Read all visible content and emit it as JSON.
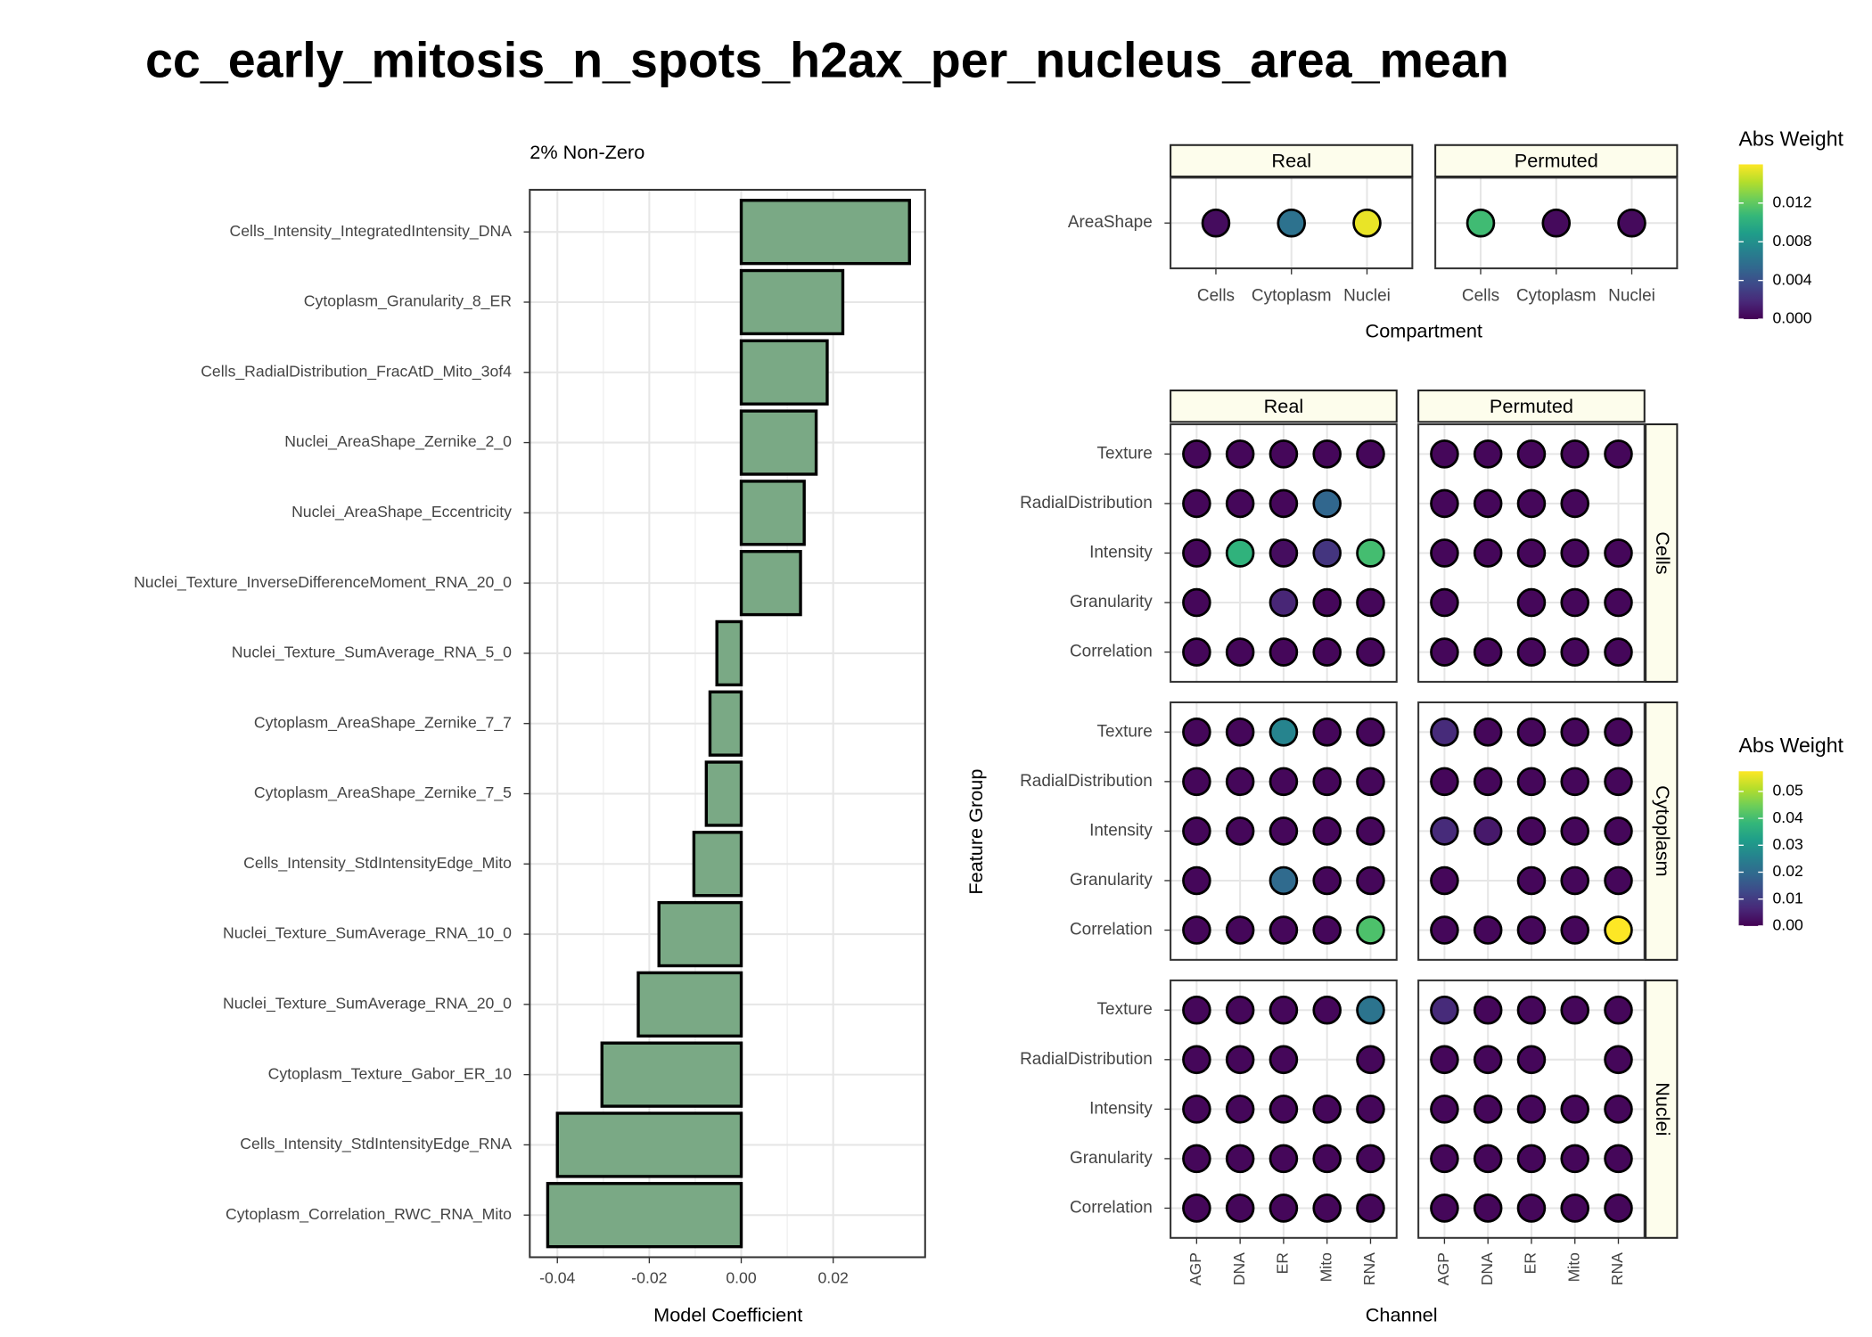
{
  "chart_data": [
    {
      "type": "bar",
      "title": "cc_early_mitosis_n_spots_h2ax_per_nucleus_area_mean",
      "subtitle": "2% Non-Zero",
      "x_label": "Model Coefficient",
      "color": "#7aa985",
      "grid": true,
      "categories": [
        "Cells_Intensity_IntegratedIntensity_DNA",
        "Cytoplasm_Granularity_8_ER",
        "Cells_RadialDistribution_FracAtD_Mito_3of4",
        "Nuclei_AreaShape_Zernike_2_0",
        "Nuclei_AreaShape_Eccentricity",
        "Nuclei_Texture_InverseDifferenceMoment_RNA_20_0",
        "Nuclei_Texture_SumAverage_RNA_5_0",
        "Cytoplasm_AreaShape_Zernike_7_7",
        "Cytoplasm_AreaShape_Zernike_7_5",
        "Cells_Intensity_StdIntensityEdge_Mito",
        "Nuclei_Texture_SumAverage_RNA_10_0",
        "Nuclei_Texture_SumAverage_RNA_20_0",
        "Cytoplasm_Texture_Gabor_ER_10",
        "Cells_Intensity_StdIntensityEdge_RNA",
        "Cytoplasm_Correlation_RWC_RNA_Mito"
      ],
      "values": [
        0.0366,
        0.0221,
        0.0187,
        0.0163,
        0.0137,
        0.0129,
        -0.0053,
        -0.0068,
        -0.0076,
        -0.0103,
        -0.0179,
        -0.0224,
        -0.0303,
        -0.04,
        -0.0421
      ],
      "xlim": [
        -0.046,
        0.04
      ],
      "xticks": [
        -0.04,
        -0.02,
        {
          "value": 0,
          "label": "0.00"
        },
        0.02
      ]
    },
    {
      "type": "dot_grid",
      "x_label": "Compartment",
      "legend_title": "Abs Weight",
      "col_facets": [
        "Real",
        "Permuted"
      ],
      "rows": [
        "AreaShape"
      ],
      "categories": [
        "Cells",
        "Cytoplasm",
        "Nuclei"
      ],
      "panels": [
        {
          "values": [
            [
              0.0005,
              0.006,
              0.0155
            ]
          ]
        },
        {
          "values": [
            [
              0.011,
              0.0004,
              0.0004
            ]
          ]
        }
      ],
      "clim": [
        0,
        0.016
      ],
      "cticks": [
        {
          "value": 0,
          "label": "0.000"
        },
        0.004,
        0.008,
        0.012
      ]
    },
    {
      "type": "dot_grid",
      "x_label": "Channel",
      "y_label": "Feature Group",
      "legend_title": "Abs Weight",
      "col_facets": [
        "Real",
        "Permuted"
      ],
      "row_facets": [
        "Cells",
        "Cytoplasm",
        "Nuclei"
      ],
      "rows": [
        "Texture",
        "RadialDistribution",
        "Intensity",
        "Granularity",
        "Correlation"
      ],
      "categories": [
        "AGP",
        "DNA",
        "ER",
        "Mito",
        "RNA"
      ],
      "panels": [
        {
          "values": [
            [
              0.001,
              0.001,
              0.001,
              0.001,
              0.001
            ],
            [
              0.001,
              0.001,
              0.001,
              0.019,
              null
            ],
            [
              0.001,
              0.037,
              0.002,
              0.009,
              0.04
            ],
            [
              0.001,
              null,
              0.006,
              0.001,
              0.001
            ],
            [
              0.001,
              0.001,
              0.001,
              0.001,
              0.001
            ]
          ]
        },
        {
          "values": [
            [
              0.001,
              0.001,
              0.001,
              0.001,
              0.001
            ],
            [
              0.001,
              0.001,
              0.001,
              0.001,
              null
            ],
            [
              0.001,
              0.001,
              0.001,
              0.001,
              0.001
            ],
            [
              0.001,
              null,
              0.001,
              0.001,
              0.001
            ],
            [
              0.001,
              0.001,
              0.001,
              0.001,
              0.001
            ]
          ]
        },
        {
          "values": [
            [
              0.001,
              0.001,
              0.026,
              0.001,
              0.001
            ],
            [
              0.001,
              0.001,
              0.001,
              0.001,
              0.001
            ],
            [
              0.001,
              0.001,
              0.001,
              0.001,
              0.001
            ],
            [
              0.001,
              null,
              0.02,
              0.001,
              0.001
            ],
            [
              0.001,
              0.001,
              0.001,
              0.001,
              0.041
            ]
          ]
        },
        {
          "values": [
            [
              0.007,
              0.001,
              0.001,
              0.001,
              0.001
            ],
            [
              0.001,
              0.001,
              0.001,
              0.001,
              0.001
            ],
            [
              0.007,
              0.004,
              0.001,
              0.001,
              0.001
            ],
            [
              0.001,
              null,
              0.001,
              0.001,
              0.001
            ],
            [
              0.001,
              0.001,
              0.001,
              0.001,
              0.0575
            ]
          ]
        },
        {
          "values": [
            [
              0.001,
              0.001,
              0.001,
              0.001,
              0.022
            ],
            [
              0.001,
              0.001,
              0.001,
              null,
              0.001
            ],
            [
              0.001,
              0.001,
              0.001,
              0.001,
              0.001
            ],
            [
              0.001,
              0.001,
              0.001,
              0.001,
              0.001
            ],
            [
              0.001,
              0.001,
              0.001,
              0.001,
              0.001
            ]
          ]
        },
        {
          "values": [
            [
              0.007,
              0.001,
              0.001,
              0.001,
              0.001
            ],
            [
              0.001,
              0.001,
              0.001,
              null,
              0.001
            ],
            [
              0.001,
              0.001,
              0.001,
              0.001,
              0.001
            ],
            [
              0.001,
              0.001,
              0.001,
              0.001,
              0.001
            ],
            [
              0.001,
              0.001,
              0.001,
              0.001,
              0.001
            ]
          ]
        }
      ],
      "clim": [
        0,
        0.0575
      ],
      "cticks": [
        {
          "value": 0,
          "label": "0.00"
        },
        0.01,
        0.02,
        0.03,
        0.04,
        0.05
      ]
    }
  ]
}
